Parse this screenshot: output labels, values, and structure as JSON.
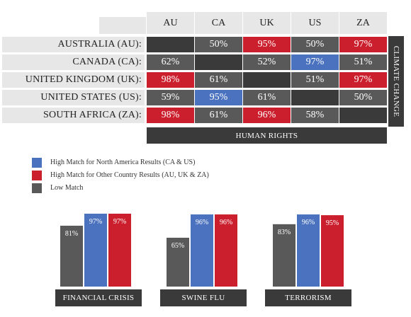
{
  "colors": {
    "high_na": "#4a72bf",
    "high_other": "#cc1f2d",
    "low": "#595959",
    "diagonal": "#3a3a3a",
    "header_bg": "#e7e7e7"
  },
  "matrix": {
    "columns": [
      "AU",
      "CA",
      "UK",
      "US",
      "ZA"
    ],
    "rows": [
      {
        "label": "AUSTRALIA (AU):",
        "cells": [
          null,
          {
            "v": "50%",
            "c": "low"
          },
          {
            "v": "95%",
            "c": "high_other"
          },
          {
            "v": "50%",
            "c": "low"
          },
          {
            "v": "97%",
            "c": "high_other"
          }
        ]
      },
      {
        "label": "CANADA (CA):",
        "cells": [
          {
            "v": "62%",
            "c": "low"
          },
          null,
          {
            "v": "52%",
            "c": "low"
          },
          {
            "v": "97%",
            "c": "high_na"
          },
          {
            "v": "51%",
            "c": "low"
          }
        ]
      },
      {
        "label": "UNITED KINGDOM (UK):",
        "cells": [
          {
            "v": "98%",
            "c": "high_other"
          },
          {
            "v": "61%",
            "c": "low"
          },
          null,
          {
            "v": "51%",
            "c": "low"
          },
          {
            "v": "97%",
            "c": "high_other"
          }
        ]
      },
      {
        "label": "UNITED STATES (US):",
        "cells": [
          {
            "v": "59%",
            "c": "low"
          },
          {
            "v": "95%",
            "c": "high_na"
          },
          {
            "v": "61%",
            "c": "low"
          },
          null,
          {
            "v": "50%",
            "c": "low"
          }
        ]
      },
      {
        "label": "SOUTH AFRICA (ZA):",
        "cells": [
          {
            "v": "98%",
            "c": "high_other"
          },
          {
            "v": "61%",
            "c": "low"
          },
          {
            "v": "96%",
            "c": "high_other"
          },
          {
            "v": "58%",
            "c": "low"
          },
          null
        ]
      }
    ],
    "bottom_label": "HUMAN RIGHTS",
    "side_label": "CLIMATE CHANGE"
  },
  "legend": [
    {
      "label": "High Match for North America Results (CA & US)",
      "color": "high_na"
    },
    {
      "label": "High Match for Other Country Results (AU, UK & ZA)",
      "color": "high_other"
    },
    {
      "label": "Low Match",
      "color": "low"
    }
  ],
  "chart_data": [
    {
      "type": "bar",
      "title": "FINANCIAL CRISIS",
      "categories": [
        "Low Match",
        "North America",
        "Other Countries"
      ],
      "values": [
        81,
        97,
        97
      ],
      "colors": [
        "low",
        "high_na",
        "high_other"
      ]
    },
    {
      "type": "bar",
      "title": "SWINE FLU",
      "categories": [
        "Low Match",
        "North America",
        "Other Countries"
      ],
      "values": [
        65,
        96,
        96
      ],
      "colors": [
        "low",
        "high_na",
        "high_other"
      ]
    },
    {
      "type": "bar",
      "title": "TERRORISM",
      "categories": [
        "Low Match",
        "North America",
        "Other Countries"
      ],
      "values": [
        83,
        96,
        95
      ],
      "colors": [
        "low",
        "high_na",
        "high_other"
      ]
    }
  ]
}
